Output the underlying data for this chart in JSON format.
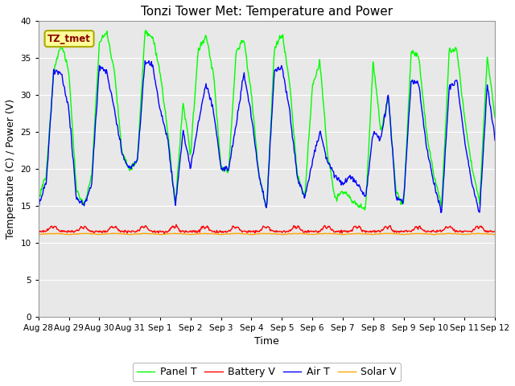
{
  "title": "Tonzi Tower Met: Temperature and Power",
  "xlabel": "Time",
  "ylabel": "Temperature (C) / Power (V)",
  "ylim": [
    0,
    40
  ],
  "yticks": [
    0,
    5,
    10,
    15,
    20,
    25,
    30,
    35,
    40
  ],
  "xtick_labels": [
    "Aug 28",
    "Aug 29",
    "Aug 30",
    "Aug 31",
    "Sep 1",
    "Sep 2",
    "Sep 3",
    "Sep 4",
    "Sep 5",
    "Sep 6",
    "Sep 7",
    "Sep 8",
    "Sep 9",
    "Sep 10",
    "Sep 11",
    "Sep 12"
  ],
  "xtick_positions": [
    0,
    1,
    2,
    3,
    4,
    5,
    6,
    7,
    8,
    9,
    10,
    11,
    12,
    13,
    14,
    15
  ],
  "colors": {
    "panel_t": "#00FF00",
    "battery_v": "#FF0000",
    "air_t": "#0000FF",
    "solar_v": "#FFA500"
  },
  "legend_labels": [
    "Panel T",
    "Battery V",
    "Air T",
    "Solar V"
  ],
  "annotation_label": "TZ_tmet",
  "annotation_color": "#8B0000",
  "annotation_bg": "#FFFF99",
  "annotation_border": "#AAAA00",
  "bg_color": "#E8E8E8",
  "fig_bg": "#FFFFFF",
  "panel_t_data": [
    16,
    19,
    33,
    37,
    33,
    17,
    15,
    19,
    37,
    38.5,
    33,
    22,
    20,
    21,
    38.5,
    38,
    33,
    25,
    15,
    29,
    22,
    36,
    38,
    33,
    20,
    19.5,
    36,
    37.5,
    30,
    19,
    14.5,
    36,
    38.5,
    32,
    19.5,
    16,
    31,
    34.5,
    22,
    16,
    17,
    16,
    15,
    14.5,
    34.5,
    25,
    29.5,
    17,
    15,
    36,
    35,
    25,
    19,
    15,
    36,
    36,
    27,
    20,
    15.5,
    35,
    36,
    27,
    16,
    20
  ],
  "air_t_data": [
    15,
    18,
    33,
    33,
    28,
    16,
    15,
    18,
    34,
    33,
    28,
    22,
    20,
    21,
    34.5,
    34,
    28,
    24,
    15,
    25,
    20,
    26,
    31.5,
    28,
    20,
    20,
    26,
    33,
    27,
    19,
    14.5,
    33,
    34,
    28,
    19,
    16,
    21,
    25,
    21,
    19,
    18,
    19,
    18,
    16,
    25,
    24,
    30,
    16,
    15.5,
    32,
    31.5,
    23,
    18,
    14,
    31,
    32,
    24,
    18,
    14,
    31.5,
    32,
    24,
    15,
    23.5
  ],
  "n_points_per_day": 48,
  "battery_v_base": 11.5,
  "battery_v_spike": 12.8,
  "solar_v_base": 11.1,
  "solar_v_max": 11.5
}
